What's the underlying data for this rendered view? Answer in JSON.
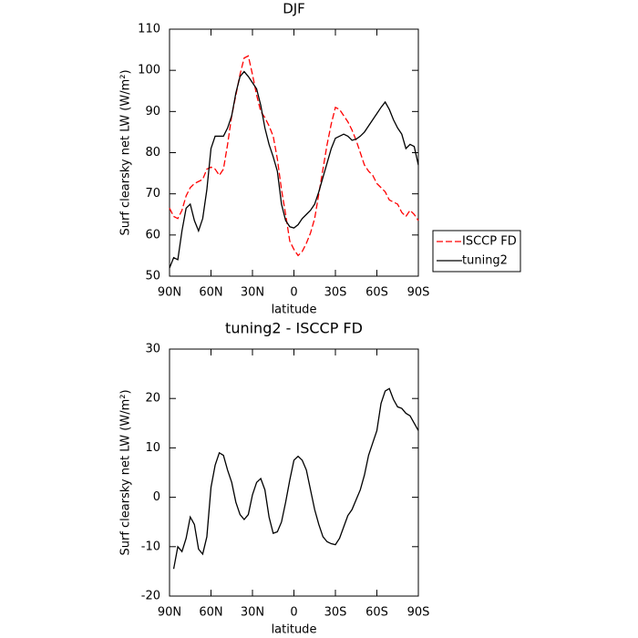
{
  "chart_data": [
    {
      "type": "line",
      "title": "DJF",
      "xlabel": "latitude",
      "ylabel": "Surf clearsky net LW (W/m²)",
      "x": [
        90,
        87,
        84,
        81,
        78,
        75,
        72,
        69,
        66,
        63,
        60,
        57,
        54,
        51,
        48,
        45,
        42,
        39,
        36,
        33,
        30,
        27,
        24,
        21,
        18,
        15,
        12,
        9,
        6,
        3,
        0,
        -3,
        -6,
        -9,
        -12,
        -15,
        -18,
        -21,
        -24,
        -27,
        -30,
        -33,
        -36,
        -39,
        -42,
        -45,
        -48,
        -51,
        -54,
        -57,
        -60,
        -63,
        -66,
        -69,
        -72,
        -75,
        -78,
        -81,
        -84,
        -87,
        -90
      ],
      "series": [
        {
          "name": "ISCCP FD",
          "color": "#ff0000",
          "line_style": "dashed",
          "values": [
            66.5,
            64.5,
            64,
            66,
            69.5,
            71.5,
            72.5,
            73,
            73.5,
            76,
            76.5,
            76,
            74.5,
            76,
            82,
            89,
            94,
            99,
            103,
            103.5,
            99,
            94,
            90,
            88.5,
            86.5,
            84,
            78.5,
            71,
            65,
            58.5,
            56.5,
            55,
            56,
            58,
            60.5,
            64,
            70,
            76,
            82,
            87,
            91,
            90.5,
            89,
            87.5,
            85.5,
            83,
            80,
            77,
            75.5,
            74.5,
            72.5,
            71.5,
            70.5,
            68.5,
            68,
            67.5,
            65.5,
            64.5,
            66,
            65,
            63.5
          ]
        },
        {
          "name": "tuning2",
          "color": "#000000",
          "line_style": "solid",
          "values": [
            52,
            54.5,
            54,
            61,
            66.5,
            67.5,
            63.5,
            61,
            64,
            71,
            81,
            84,
            84,
            84,
            86,
            89,
            94.5,
            98.5,
            99.7,
            98.5,
            97,
            95.5,
            91.5,
            86,
            82,
            79,
            75.5,
            67.5,
            63.5,
            62,
            61.7,
            62.5,
            64,
            65,
            66,
            67.5,
            70.5,
            74,
            77.5,
            81,
            83.5,
            84,
            84.5,
            84,
            83,
            83.3,
            84,
            85,
            86.5,
            88,
            89.5,
            91,
            92.3,
            90.5,
            88,
            86,
            84.5,
            81,
            82,
            81.5,
            77
          ]
        }
      ],
      "xlim": [
        90,
        -90
      ],
      "xticks": [
        {
          "value": 90,
          "label": "90N"
        },
        {
          "value": 60,
          "label": "60N"
        },
        {
          "value": 30,
          "label": "30N"
        },
        0,
        {
          "value": -30,
          "label": "30S"
        },
        {
          "value": -60,
          "label": "60S"
        },
        {
          "value": -90,
          "label": "90S"
        }
      ],
      "ylim": [
        50,
        110
      ],
      "yticks": [
        50,
        60,
        70,
        80,
        90,
        100,
        110
      ],
      "legend": "right"
    },
    {
      "type": "line",
      "title": "tuning2 - ISCCP FD",
      "xlabel": "latitude",
      "ylabel": "Surf clearsky net LW (W/m²)",
      "x": [
        87,
        84,
        81,
        78,
        75,
        72,
        69,
        66,
        63,
        60,
        57,
        54,
        51,
        48,
        45,
        42,
        39,
        36,
        33,
        30,
        27,
        24,
        21,
        18,
        15,
        12,
        9,
        6,
        3,
        0,
        -3,
        -6,
        -9,
        -12,
        -15,
        -18,
        -21,
        -24,
        -27,
        -30,
        -33,
        -36,
        -39,
        -42,
        -45,
        -48,
        -51,
        -54,
        -57,
        -60,
        -63,
        -66,
        -69,
        -72,
        -75,
        -78,
        -81,
        -84,
        -87,
        -90
      ],
      "series": [
        {
          "color": "#000000",
          "line_style": "solid",
          "values": [
            -14.5,
            -10,
            -11,
            -8.3,
            -4,
            -5.5,
            -10.5,
            -11.5,
            -8,
            2,
            6.5,
            9,
            8.5,
            5.5,
            3,
            -1,
            -3.5,
            -4.5,
            -3.5,
            0.5,
            3,
            3.8,
            1.5,
            -4,
            -7.3,
            -7,
            -5,
            -1,
            3.5,
            7.5,
            8.3,
            7.5,
            5.5,
            1.5,
            -2.5,
            -5.5,
            -8,
            -9,
            -9.4,
            -9.6,
            -8.3,
            -6,
            -3.7,
            -2.5,
            -0.5,
            1.5,
            4.5,
            8.5,
            11,
            13.5,
            19,
            21.5,
            22,
            19.8,
            18.3,
            18,
            17,
            16.5,
            15,
            13.5
          ]
        }
      ],
      "xlim": [
        90,
        -90
      ],
      "xticks": [
        {
          "value": 90,
          "label": "90N"
        },
        {
          "value": 60,
          "label": "60N"
        },
        {
          "value": 30,
          "label": "30N"
        },
        0,
        {
          "value": -30,
          "label": "30S"
        },
        {
          "value": -60,
          "label": "60S"
        },
        {
          "value": -90,
          "label": "90S"
        }
      ],
      "ylim": [
        -20,
        30
      ],
      "yticks": [
        -20,
        -10,
        0,
        10,
        20,
        30
      ]
    }
  ]
}
